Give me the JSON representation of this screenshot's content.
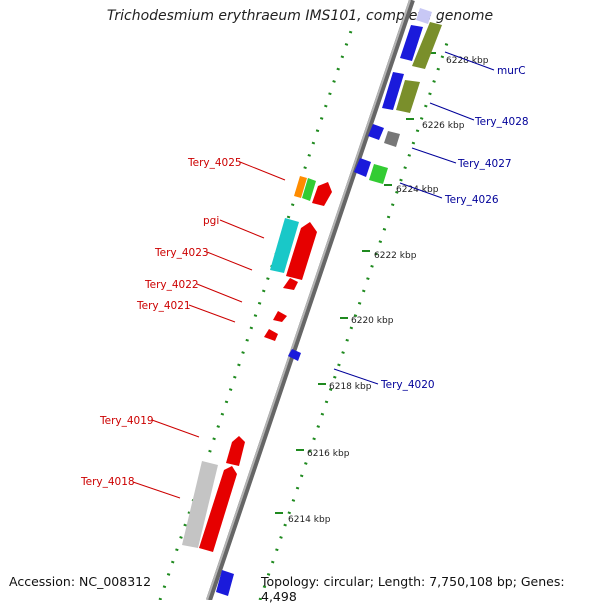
{
  "title": "Trichodesmium erythraeum IMS101, complete genome",
  "footer": {
    "accession": "Accession: NC_008312",
    "topology": "Topology: circular; Length: 7,750,108 bp; Genes: 4,498"
  },
  "colors": {
    "backbone": "#8a8a8a",
    "ruler": "#1f8a1f",
    "forward_label": "#000099",
    "reverse_label": "#cc0000"
  },
  "scale": {
    "ticks": [
      {
        "label": "6214 kbp"
      },
      {
        "label": "6216 kbp"
      },
      {
        "label": "6218 kbp"
      },
      {
        "label": "6220 kbp"
      },
      {
        "label": "6222 kbp"
      },
      {
        "label": "6224 kbp"
      },
      {
        "label": "6226 kbp"
      },
      {
        "label": "6228 kbp"
      }
    ]
  },
  "gene_labels": {
    "forward": [
      {
        "label": "murC"
      },
      {
        "label": "Tery_4028"
      },
      {
        "label": "Tery_4027"
      },
      {
        "label": "Tery_4026"
      },
      {
        "label": "Tery_4020"
      }
    ],
    "reverse": [
      {
        "label": "Tery_4025"
      },
      {
        "label": "pgi"
      },
      {
        "label": "Tery_4023"
      },
      {
        "label": "Tery_4022"
      },
      {
        "label": "Tery_4021"
      },
      {
        "label": "Tery_4019"
      },
      {
        "label": "Tery_4018"
      }
    ]
  }
}
